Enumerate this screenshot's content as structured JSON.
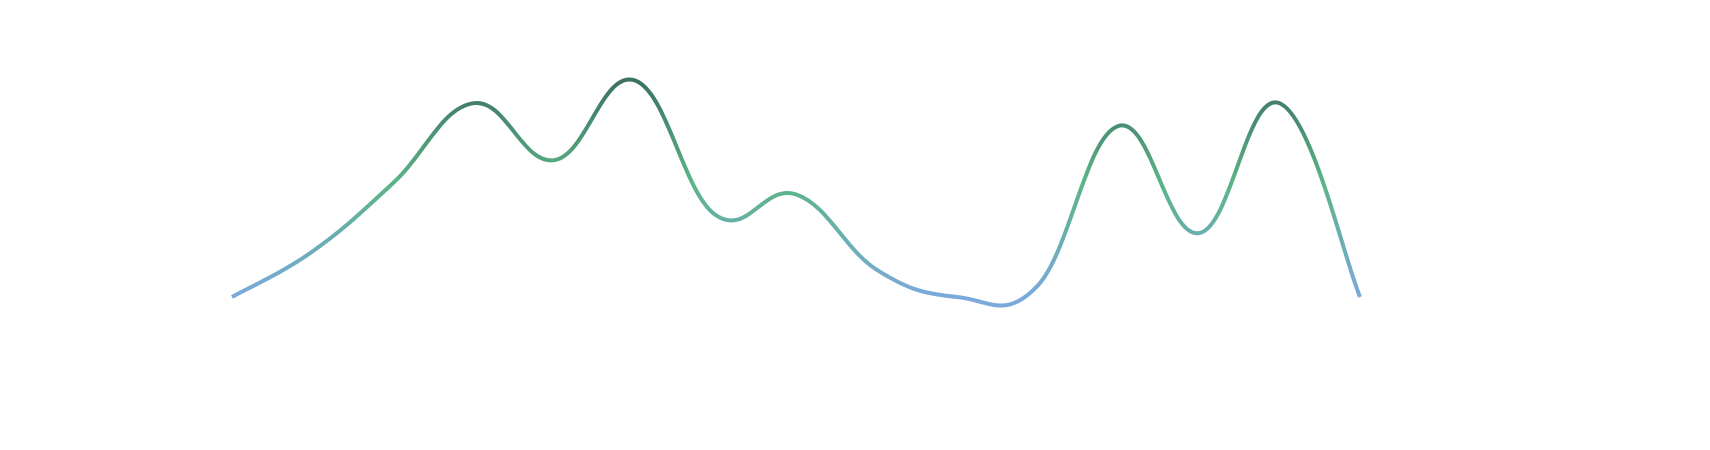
{
  "chart_data": {
    "type": "line",
    "categories": [
      null,
      null,
      null,
      null,
      null,
      null,
      null,
      null,
      null,
      null,
      null,
      null,
      null,
      null,
      null
    ],
    "series": [
      {
        "values": [
          0,
          20,
          50,
          85,
          60,
          95,
          36,
          45,
          12,
          0,
          5,
          75,
          28,
          85,
          0
        ]
      }
    ],
    "ylim": [
      0,
      100
    ],
    "gradient_colors": [
      "#7ba9dc",
      "#5bb487",
      "#386a5f"
    ]
  }
}
